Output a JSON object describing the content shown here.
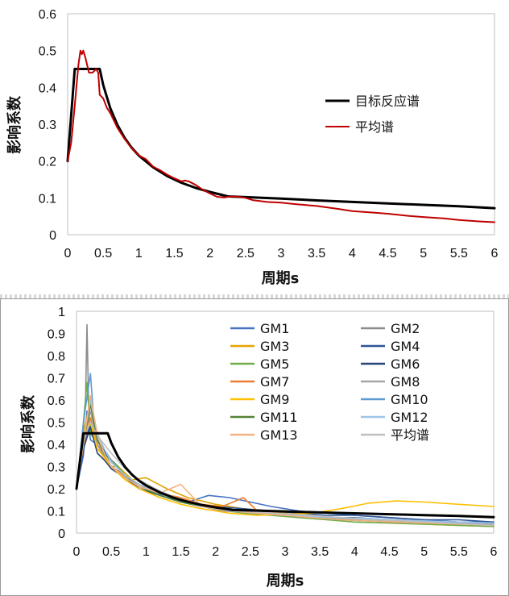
{
  "chart_data": [
    {
      "type": "line",
      "xlabel": "周期s",
      "ylabel": "影响系数",
      "xlim": [
        0,
        6
      ],
      "ylim": [
        0,
        0.6
      ],
      "xticks": [
        "0",
        "0.5",
        "1",
        "1.5",
        "2",
        "2.5",
        "3",
        "3.5",
        "4",
        "4.5",
        "5",
        "5.5",
        "6"
      ],
      "yticks": [
        "0",
        "0.1",
        "0.2",
        "0.3",
        "0.4",
        "0.5",
        "0.6"
      ],
      "grid": false,
      "legend_position": "right",
      "series": [
        {
          "name": "目标反应谱",
          "color": "#000000",
          "x": [
            0,
            0.1,
            0.45,
            0.5,
            0.6,
            0.7,
            0.8,
            0.9,
            1.0,
            1.2,
            1.4,
            1.6,
            1.8,
            2.0,
            2.25,
            2.5,
            3.0,
            3.5,
            4.0,
            4.5,
            5.0,
            5.5,
            6.0
          ],
          "y": [
            0.2,
            0.45,
            0.45,
            0.406,
            0.343,
            0.298,
            0.263,
            0.236,
            0.215,
            0.183,
            0.159,
            0.141,
            0.127,
            0.116,
            0.104,
            0.102,
            0.098,
            0.093,
            0.089,
            0.085,
            0.081,
            0.077,
            0.072
          ]
        },
        {
          "name": "平均谱",
          "color": "#c00000",
          "x": [
            0,
            0.05,
            0.1,
            0.15,
            0.18,
            0.2,
            0.22,
            0.25,
            0.3,
            0.35,
            0.4,
            0.43,
            0.45,
            0.5,
            0.55,
            0.6,
            0.7,
            0.8,
            0.9,
            1.0,
            1.1,
            1.2,
            1.3,
            1.4,
            1.5,
            1.6,
            1.65,
            1.7,
            1.8,
            1.9,
            2.0,
            2.1,
            2.2,
            2.3,
            2.4,
            2.5,
            2.6,
            2.8,
            3.0,
            3.2,
            3.5,
            3.8,
            4.0,
            4.3,
            4.5,
            4.8,
            5.0,
            5.3,
            5.5,
            5.8,
            6.0
          ],
          "y": [
            0.2,
            0.25,
            0.35,
            0.46,
            0.5,
            0.49,
            0.5,
            0.48,
            0.44,
            0.44,
            0.45,
            0.44,
            0.38,
            0.37,
            0.345,
            0.33,
            0.29,
            0.26,
            0.235,
            0.215,
            0.205,
            0.185,
            0.175,
            0.163,
            0.153,
            0.145,
            0.147,
            0.145,
            0.135,
            0.122,
            0.112,
            0.103,
            0.101,
            0.104,
            0.103,
            0.1,
            0.094,
            0.089,
            0.087,
            0.083,
            0.078,
            0.07,
            0.064,
            0.06,
            0.057,
            0.051,
            0.048,
            0.044,
            0.04,
            0.036,
            0.034
          ]
        }
      ]
    },
    {
      "type": "line",
      "xlabel": "周期s",
      "ylabel": "影响系数",
      "xlim": [
        0,
        6
      ],
      "ylim": [
        0,
        1
      ],
      "xticks": [
        "0",
        "0.5",
        "1",
        "1.5",
        "2",
        "2.5",
        "3",
        "3.5",
        "4",
        "4.5",
        "5",
        "5.5",
        "6"
      ],
      "yticks": [
        "0",
        "0.1",
        "0.2",
        "0.3",
        "0.4",
        "0.5",
        "0.6",
        "0.7",
        "0.8",
        "0.9",
        "1"
      ],
      "grid": false,
      "legend_position": "top-right",
      "legend": [
        "GM1",
        "GM2",
        "GM3",
        "GM4",
        "GM5",
        "GM6",
        "GM7",
        "GM8",
        "GM9",
        "GM10",
        "GM11",
        "GM12",
        "GM13",
        "平均谱"
      ],
      "series": [
        {
          "name": "GM1",
          "color": "#4472c4",
          "x": [
            0,
            0.1,
            0.15,
            0.2,
            0.3,
            0.4,
            0.5,
            0.6,
            0.8,
            1.0,
            1.3,
            1.6,
            1.9,
            2.2,
            2.5,
            2.8,
            3.2,
            3.6,
            4.0,
            4.5,
            5.0,
            5.5,
            6.0
          ],
          "y": [
            0.2,
            0.35,
            0.55,
            0.42,
            0.4,
            0.36,
            0.33,
            0.3,
            0.22,
            0.2,
            0.16,
            0.14,
            0.17,
            0.16,
            0.14,
            0.12,
            0.1,
            0.09,
            0.08,
            0.07,
            0.06,
            0.05,
            0.05
          ]
        },
        {
          "name": "GM2",
          "color": "#8c8c8c",
          "x": [
            0,
            0.08,
            0.13,
            0.15,
            0.18,
            0.25,
            0.35,
            0.5,
            0.7,
            0.9,
            1.2,
            1.5,
            1.8,
            2.1,
            2.5,
            3.0,
            3.5,
            4.0,
            4.5,
            5.0,
            5.5,
            6.0
          ],
          "y": [
            0.2,
            0.4,
            0.6,
            0.94,
            0.5,
            0.42,
            0.4,
            0.33,
            0.25,
            0.22,
            0.17,
            0.14,
            0.12,
            0.1,
            0.09,
            0.08,
            0.07,
            0.06,
            0.05,
            0.045,
            0.04,
            0.035
          ]
        },
        {
          "name": "GM3",
          "color": "#e2a400",
          "x": [
            0,
            0.1,
            0.2,
            0.3,
            0.4,
            0.5,
            0.6,
            0.8,
            1.0,
            1.3,
            1.6,
            2.0,
            2.4,
            2.8,
            3.2,
            3.6,
            4.0,
            4.5,
            5.0,
            5.5,
            6.0
          ],
          "y": [
            0.2,
            0.45,
            0.6,
            0.38,
            0.35,
            0.3,
            0.3,
            0.24,
            0.25,
            0.2,
            0.16,
            0.13,
            0.11,
            0.1,
            0.08,
            0.07,
            0.06,
            0.05,
            0.04,
            0.035,
            0.03
          ]
        },
        {
          "name": "GM4",
          "color": "#2e5597",
          "x": [
            0,
            0.1,
            0.2,
            0.3,
            0.4,
            0.5,
            0.7,
            0.9,
            1.1,
            1.4,
            1.7,
            2.0,
            2.4,
            2.8,
            3.2,
            3.6,
            4.0,
            4.5,
            5.0,
            5.5,
            6.0
          ],
          "y": [
            0.2,
            0.4,
            0.5,
            0.42,
            0.37,
            0.32,
            0.26,
            0.2,
            0.18,
            0.15,
            0.13,
            0.12,
            0.11,
            0.1,
            0.09,
            0.08,
            0.08,
            0.07,
            0.06,
            0.06,
            0.05
          ]
        },
        {
          "name": "GM5",
          "color": "#70ad47",
          "x": [
            0,
            0.1,
            0.15,
            0.2,
            0.3,
            0.4,
            0.6,
            0.8,
            1.0,
            1.3,
            1.6,
            2.0,
            2.4,
            2.8,
            3.2,
            3.6,
            4.0,
            4.5,
            5.0,
            5.5,
            6.0
          ],
          "y": [
            0.2,
            0.5,
            0.68,
            0.45,
            0.4,
            0.35,
            0.3,
            0.22,
            0.2,
            0.17,
            0.14,
            0.11,
            0.09,
            0.08,
            0.07,
            0.06,
            0.05,
            0.045,
            0.04,
            0.035,
            0.03
          ]
        },
        {
          "name": "GM6",
          "color": "#264478",
          "x": [
            0,
            0.1,
            0.2,
            0.3,
            0.4,
            0.5,
            0.7,
            0.9,
            1.2,
            1.5,
            1.8,
            2.1,
            2.5,
            2.9,
            3.3,
            3.7,
            4.0,
            4.5,
            5.0,
            5.5,
            6.0
          ],
          "y": [
            0.2,
            0.38,
            0.48,
            0.36,
            0.33,
            0.29,
            0.25,
            0.2,
            0.17,
            0.14,
            0.12,
            0.11,
            0.1,
            0.09,
            0.08,
            0.07,
            0.07,
            0.06,
            0.05,
            0.05,
            0.04
          ]
        },
        {
          "name": "GM7",
          "color": "#ed7d31",
          "x": [
            0,
            0.1,
            0.2,
            0.3,
            0.4,
            0.5,
            0.7,
            0.9,
            1.2,
            1.5,
            1.8,
            2.1,
            2.4,
            2.6,
            2.9,
            3.3,
            3.7,
            4.0,
            4.5,
            5.0,
            5.5,
            6.0
          ],
          "y": [
            0.2,
            0.4,
            0.52,
            0.4,
            0.36,
            0.3,
            0.26,
            0.22,
            0.18,
            0.16,
            0.13,
            0.12,
            0.16,
            0.1,
            0.09,
            0.08,
            0.07,
            0.06,
            0.05,
            0.045,
            0.04,
            0.035
          ]
        },
        {
          "name": "GM8",
          "color": "#a5a5a5",
          "x": [
            0,
            0.1,
            0.2,
            0.3,
            0.4,
            0.5,
            0.7,
            0.9,
            1.2,
            1.5,
            1.8,
            2.2,
            2.6,
            3.0,
            3.4,
            3.8,
            4.2,
            4.6,
            5.0,
            5.5,
            6.0
          ],
          "y": [
            0.2,
            0.42,
            0.55,
            0.4,
            0.34,
            0.3,
            0.25,
            0.21,
            0.17,
            0.14,
            0.12,
            0.1,
            0.09,
            0.08,
            0.07,
            0.065,
            0.06,
            0.055,
            0.05,
            0.045,
            0.04
          ]
        },
        {
          "name": "GM9",
          "color": "#ffc000",
          "x": [
            0,
            0.1,
            0.2,
            0.3,
            0.4,
            0.5,
            0.7,
            0.9,
            1.2,
            1.5,
            1.8,
            2.2,
            2.6,
            3.0,
            3.4,
            3.8,
            4.2,
            4.6,
            5.0,
            5.5,
            6.0
          ],
          "y": [
            0.2,
            0.45,
            0.5,
            0.38,
            0.34,
            0.3,
            0.24,
            0.2,
            0.16,
            0.13,
            0.11,
            0.09,
            0.08,
            0.085,
            0.09,
            0.11,
            0.135,
            0.145,
            0.14,
            0.13,
            0.12
          ]
        },
        {
          "name": "GM10",
          "color": "#5b9bd5",
          "x": [
            0,
            0.1,
            0.2,
            0.25,
            0.3,
            0.4,
            0.5,
            0.7,
            0.9,
            1.2,
            1.5,
            1.8,
            2.2,
            2.6,
            3.0,
            3.4,
            3.8,
            4.2,
            4.6,
            5.0,
            5.5,
            6.0
          ],
          "y": [
            0.2,
            0.5,
            0.72,
            0.5,
            0.42,
            0.36,
            0.3,
            0.25,
            0.21,
            0.17,
            0.14,
            0.12,
            0.1,
            0.09,
            0.08,
            0.075,
            0.07,
            0.065,
            0.06,
            0.055,
            0.05,
            0.045
          ]
        },
        {
          "name": "GM11",
          "color": "#548235",
          "x": [
            0,
            0.1,
            0.2,
            0.3,
            0.4,
            0.5,
            0.7,
            0.9,
            1.2,
            1.5,
            1.8,
            2.2,
            2.6,
            3.0,
            3.4,
            3.8,
            4.2,
            4.6,
            5.0,
            5.5,
            6.0
          ],
          "y": [
            0.2,
            0.4,
            0.58,
            0.42,
            0.36,
            0.3,
            0.25,
            0.21,
            0.17,
            0.14,
            0.12,
            0.1,
            0.09,
            0.08,
            0.07,
            0.06,
            0.055,
            0.05,
            0.045,
            0.04,
            0.035
          ]
        },
        {
          "name": "GM12",
          "color": "#9dc3e6",
          "x": [
            0,
            0.1,
            0.2,
            0.3,
            0.4,
            0.5,
            0.7,
            0.9,
            1.2,
            1.5,
            1.8,
            2.2,
            2.6,
            3.0,
            3.4,
            3.8,
            4.2,
            4.6,
            5.0,
            5.5,
            6.0
          ],
          "y": [
            0.2,
            0.42,
            0.6,
            0.45,
            0.38,
            0.32,
            0.26,
            0.22,
            0.18,
            0.15,
            0.12,
            0.1,
            0.09,
            0.08,
            0.075,
            0.07,
            0.065,
            0.06,
            0.055,
            0.05,
            0.045
          ]
        },
        {
          "name": "GM13",
          "color": "#f4b183",
          "x": [
            0,
            0.1,
            0.2,
            0.3,
            0.4,
            0.5,
            0.7,
            0.9,
            1.2,
            1.5,
            1.8,
            2.2,
            2.6,
            3.0,
            3.4,
            3.8,
            4.2,
            4.6,
            5.0,
            5.5,
            6.0
          ],
          "y": [
            0.2,
            0.4,
            0.62,
            0.44,
            0.36,
            0.3,
            0.25,
            0.21,
            0.18,
            0.22,
            0.12,
            0.1,
            0.09,
            0.08,
            0.07,
            0.06,
            0.055,
            0.05,
            0.045,
            0.04,
            0.035
          ]
        },
        {
          "name": "平均谱",
          "color": "#bfbfbf",
          "x": [
            0,
            0.1,
            0.2,
            0.3,
            0.4,
            0.5,
            0.7,
            0.9,
            1.2,
            1.5,
            1.8,
            2.2,
            2.6,
            3.0,
            3.4,
            3.8,
            4.2,
            4.6,
            5.0,
            5.5,
            6.0
          ],
          "y": [
            0.2,
            0.42,
            0.5,
            0.44,
            0.4,
            0.36,
            0.29,
            0.24,
            0.19,
            0.15,
            0.13,
            0.1,
            0.095,
            0.087,
            0.08,
            0.07,
            0.06,
            0.056,
            0.05,
            0.042,
            0.035
          ]
        },
        {
          "color": "#000000",
          "x": [
            0,
            0.1,
            0.45,
            0.5,
            0.6,
            0.7,
            0.8,
            0.9,
            1.0,
            1.2,
            1.4,
            1.6,
            1.8,
            2.0,
            2.25,
            2.5,
            3.0,
            3.5,
            4.0,
            4.5,
            5.0,
            5.5,
            6.0
          ],
          "y": [
            0.2,
            0.45,
            0.45,
            0.406,
            0.343,
            0.298,
            0.263,
            0.236,
            0.215,
            0.183,
            0.159,
            0.141,
            0.127,
            0.116,
            0.104,
            0.102,
            0.098,
            0.093,
            0.089,
            0.085,
            0.081,
            0.077,
            0.072
          ]
        }
      ]
    }
  ]
}
